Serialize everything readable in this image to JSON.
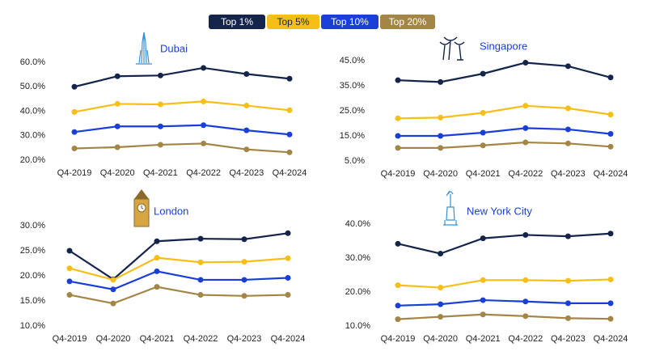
{
  "legend": [
    {
      "name": "Top 1%",
      "color": "#14244b",
      "text_color": "#ffffff"
    },
    {
      "name": "Top 5%",
      "color": "#f7be17",
      "text_color": "#14244b"
    },
    {
      "name": "Top 10%",
      "color": "#1a3fd6",
      "text_color": "#ffffff"
    },
    {
      "name": "Top 20%",
      "color": "#a38545",
      "text_color": "#ffffff"
    }
  ],
  "chart_data": [
    {
      "type": "line",
      "title": "Dubai",
      "categories": [
        "Q4-2019",
        "Q4-2020",
        "Q4-2021",
        "Q4-2022",
        "Q4-2023",
        "Q4-2024"
      ],
      "ylim": [
        20,
        60
      ],
      "yticks": [
        {
          "value": 20,
          "label": "20.0%"
        },
        {
          "value": 30,
          "label": "30.0%"
        },
        {
          "value": 40,
          "label": "40.0%"
        },
        {
          "value": 50,
          "label": "50.0%"
        },
        {
          "value": 60,
          "label": "60.0%"
        }
      ],
      "series": [
        {
          "values": [
            50,
            54.3,
            54.6,
            57.7,
            55.2,
            53.3
          ]
        },
        {
          "values": [
            39.7,
            43,
            42.8,
            44,
            42.3,
            40.4
          ]
        },
        {
          "values": [
            31.5,
            33.8,
            33.8,
            34.3,
            32.2,
            30.5
          ]
        },
        {
          "values": [
            24.8,
            25.3,
            26.3,
            26.8,
            24.4,
            23.2
          ]
        }
      ]
    },
    {
      "type": "line",
      "title": "Singapore",
      "categories": [
        "Q4-2019",
        "Q4-2020",
        "Q4-2021",
        "Q4-2022",
        "Q4-2023",
        "Q4-2024"
      ],
      "ylim": [
        5,
        45
      ],
      "yticks": [
        {
          "value": 5,
          "label": "5.0%"
        },
        {
          "value": 15,
          "label": "15.0%"
        },
        {
          "value": 25,
          "label": "25.0%"
        },
        {
          "value": 35,
          "label": "35.0%"
        },
        {
          "value": 45,
          "label": "45.0%"
        }
      ],
      "series": [
        {
          "values": [
            37.2,
            36.5,
            39.8,
            44.2,
            42.8,
            38.3
          ]
        },
        {
          "values": [
            22,
            22.3,
            24.2,
            27,
            26,
            23.5
          ]
        },
        {
          "values": [
            15,
            15,
            16.3,
            18.1,
            17.6,
            15.8
          ]
        },
        {
          "values": [
            10.2,
            10.2,
            11.2,
            12.4,
            12,
            10.7
          ]
        }
      ]
    },
    {
      "type": "line",
      "title": "London",
      "categories": [
        "Q4-2019",
        "Q4-2020",
        "Q4-2021",
        "Q4-2022",
        "Q4-2023",
        "Q4-2024"
      ],
      "ylim": [
        10,
        30
      ],
      "yticks": [
        {
          "value": 10,
          "label": "10.0%"
        },
        {
          "value": 15,
          "label": "15.0%"
        },
        {
          "value": 20,
          "label": "20.0%"
        },
        {
          "value": 25,
          "label": "25.0%"
        },
        {
          "value": 30,
          "label": "30.0%"
        }
      ],
      "series": [
        {
          "values": [
            25,
            19.3,
            26.9,
            27.4,
            27.3,
            28.5
          ]
        },
        {
          "values": [
            21.5,
            19.2,
            23.6,
            22.7,
            22.8,
            23.5
          ]
        },
        {
          "values": [
            18.9,
            17.3,
            20.9,
            19.2,
            19.2,
            19.6
          ]
        },
        {
          "values": [
            16.2,
            14.5,
            17.8,
            16.2,
            16,
            16.2
          ]
        }
      ]
    },
    {
      "type": "line",
      "title": "New York City",
      "categories": [
        "Q4-2019",
        "Q4-2020",
        "Q4-2021",
        "Q4-2022",
        "Q4-2023",
        "Q4-2024"
      ],
      "ylim": [
        10,
        40
      ],
      "yticks": [
        {
          "value": 10,
          "label": "10.0%"
        },
        {
          "value": 20,
          "label": "20.0%"
        },
        {
          "value": 30,
          "label": "30.0%"
        },
        {
          "value": 40,
          "label": "40.0%"
        }
      ],
      "series": [
        {
          "values": [
            34.2,
            31.3,
            35.8,
            36.8,
            36.4,
            37.2
          ]
        },
        {
          "values": [
            22,
            21.3,
            23.5,
            23.5,
            23.3,
            23.7
          ]
        },
        {
          "values": [
            16,
            16.4,
            17.6,
            17.2,
            16.7,
            16.7
          ]
        },
        {
          "values": [
            12,
            12.7,
            13.4,
            12.9,
            12.3,
            12.1
          ]
        }
      ]
    }
  ]
}
